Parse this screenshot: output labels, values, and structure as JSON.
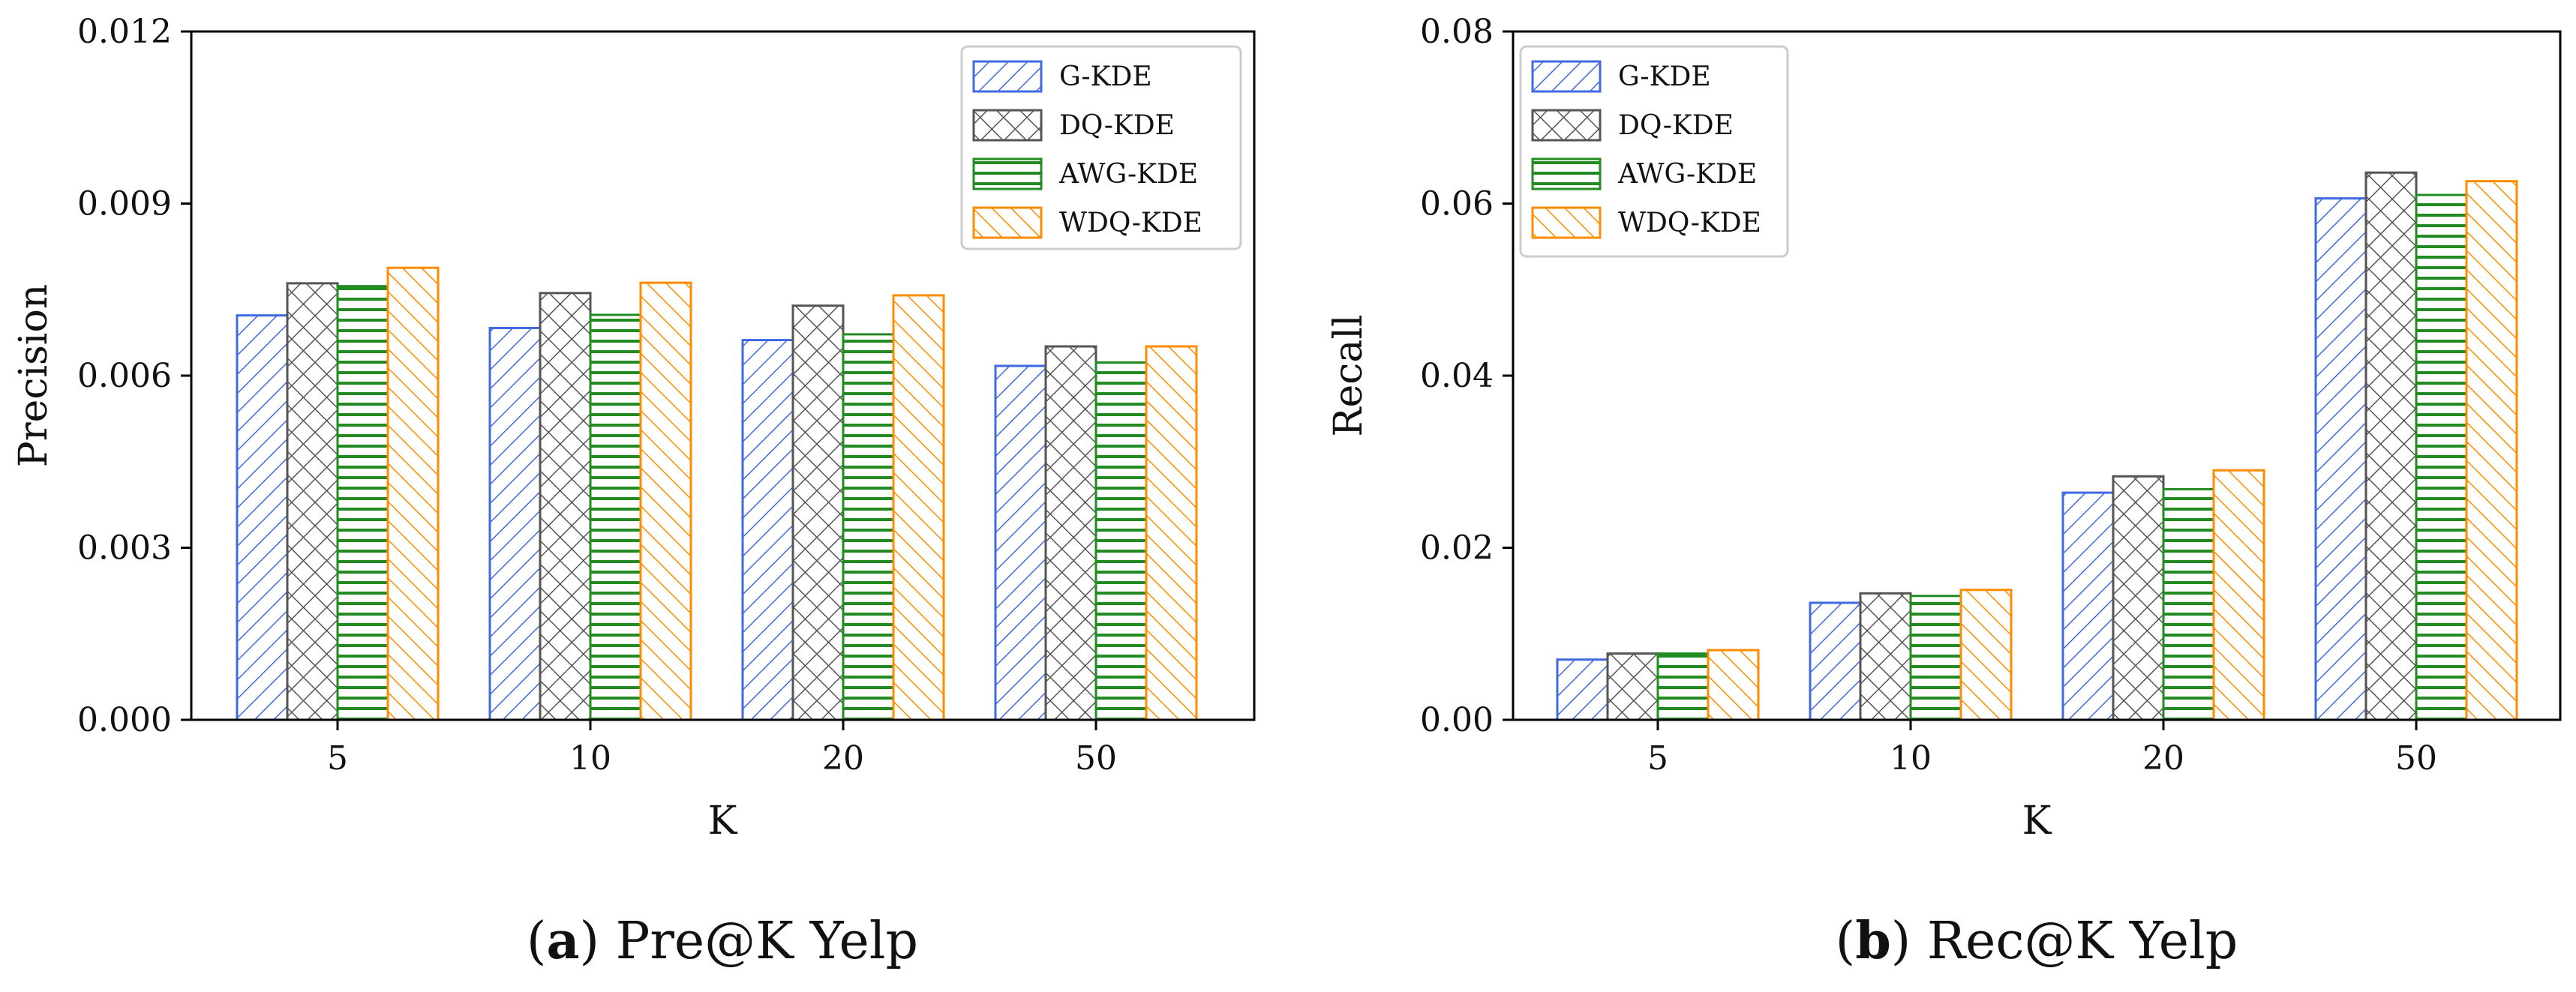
{
  "chart_data": [
    {
      "type": "bar",
      "caption_id": "a",
      "caption_text": " Pre@K Yelp",
      "categories": [
        "5",
        "10",
        "20",
        "50"
      ],
      "series": [
        {
          "name": "G-KDE",
          "values": [
            0.00705,
            0.00683,
            0.00662,
            0.00617
          ]
        },
        {
          "name": "DQ-KDE",
          "values": [
            0.00761,
            0.00744,
            0.00722,
            0.00651
          ]
        },
        {
          "name": "AWG-KDE",
          "values": [
            0.00756,
            0.00706,
            0.00672,
            0.00623
          ]
        },
        {
          "name": "WDQ-KDE",
          "values": [
            0.00788,
            0.00762,
            0.0074,
            0.00651
          ]
        }
      ],
      "xlabel": "K",
      "ylabel": "Precision",
      "ylim": [
        0,
        0.012
      ],
      "yticks": [
        "0.000",
        "0.003",
        "0.006",
        "0.009",
        "0.012"
      ],
      "legend_position": "top-right"
    },
    {
      "type": "bar",
      "caption_id": "b",
      "caption_text": " Rec@K Yelp",
      "categories": [
        "5",
        "10",
        "20",
        "50"
      ],
      "series": [
        {
          "name": "G-KDE",
          "values": [
            0.007,
            0.0136,
            0.0264,
            0.0606
          ]
        },
        {
          "name": "DQ-KDE",
          "values": [
            0.0077,
            0.0147,
            0.0283,
            0.0636
          ]
        },
        {
          "name": "AWG-KDE",
          "values": [
            0.0077,
            0.0144,
            0.0268,
            0.061
          ]
        },
        {
          "name": "WDQ-KDE",
          "values": [
            0.0081,
            0.0151,
            0.029,
            0.0626
          ]
        }
      ],
      "xlabel": "K",
      "ylabel": "Recall",
      "ylim": [
        0,
        0.08
      ],
      "yticks": [
        "0.00",
        "0.02",
        "0.04",
        "0.06",
        "0.08"
      ],
      "legend_position": "top-left"
    }
  ],
  "series_colors": [
    "#4169e1",
    "#555555",
    "#228b22",
    "#ff8c00"
  ],
  "series_patterns": [
    "diagonal-forward",
    "crosshatch",
    "horizontal",
    "diagonal-back"
  ]
}
